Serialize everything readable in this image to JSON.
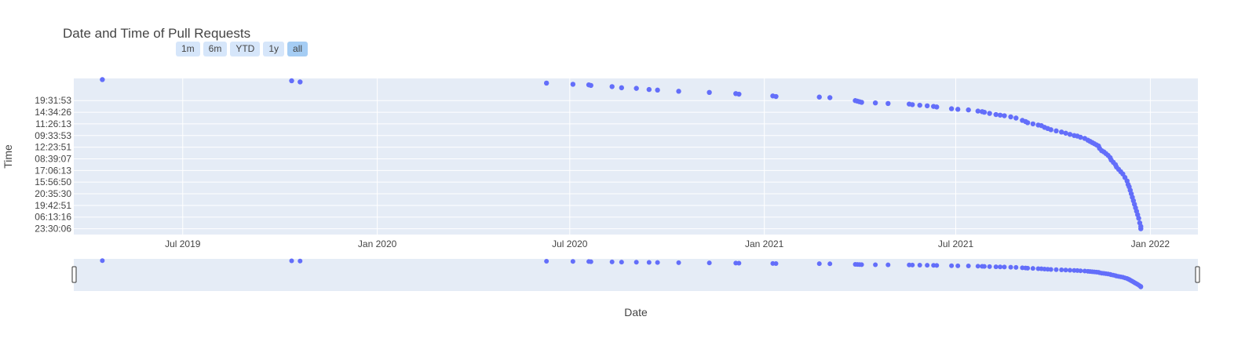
{
  "chart_data": {
    "type": "scatter",
    "title": "Date and Time of Pull Requests",
    "xlabel": "Date",
    "ylabel": "Time",
    "xlim": [
      "2019-03-20",
      "2022-02-15"
    ],
    "x_ticks": [
      {
        "date": "2019-07-01",
        "label": "Jul 2019"
      },
      {
        "date": "2020-01-01",
        "label": "Jan 2020"
      },
      {
        "date": "2020-07-01",
        "label": "Jul 2020"
      },
      {
        "date": "2021-01-01",
        "label": "Jan 2021"
      },
      {
        "date": "2021-07-01",
        "label": "Jul 2021"
      },
      {
        "date": "2022-01-01",
        "label": "Jan 2022"
      }
    ],
    "y_categories": [
      "23:30:06",
      "06:13:16",
      "19:42:51",
      "20:35:30",
      "15:56:50",
      "17:06:13",
      "08:39:07",
      "12:23:51",
      "09:33:53",
      "11:26:13",
      "14:34:26",
      "19:31:53"
    ],
    "y_axis_type": "category",
    "color": "#636efa",
    "range_selector": [
      "1m",
      "6m",
      "YTD",
      "1y",
      "all"
    ],
    "range_selector_active": "all",
    "range_slider": true,
    "series": [
      {
        "points": [
          [
            "2019-04-16",
            12.8
          ],
          [
            "2019-10-12",
            12.7
          ],
          [
            "2019-10-20",
            12.6
          ],
          [
            "2020-06-09",
            12.5
          ],
          [
            "2020-07-04",
            12.4
          ],
          [
            "2020-07-19",
            12.35
          ],
          [
            "2020-07-21",
            12.3
          ],
          [
            "2020-08-10",
            12.2
          ],
          [
            "2020-08-19",
            12.1
          ],
          [
            "2020-09-02",
            12.05
          ],
          [
            "2020-09-14",
            11.95
          ],
          [
            "2020-09-22",
            11.9
          ],
          [
            "2020-10-12",
            11.8
          ],
          [
            "2020-11-10",
            11.7
          ],
          [
            "2020-12-05",
            11.6
          ],
          [
            "2020-12-08",
            11.55
          ],
          [
            "2021-01-09",
            11.4
          ],
          [
            "2021-01-12",
            11.35
          ],
          [
            "2021-02-22",
            11.3
          ],
          [
            "2021-03-04",
            11.25
          ],
          [
            "2021-03-28",
            11.0
          ],
          [
            "2021-03-30",
            10.95
          ],
          [
            "2021-04-01",
            10.9
          ],
          [
            "2021-04-03",
            10.85
          ],
          [
            "2021-04-16",
            10.8
          ],
          [
            "2021-04-28",
            10.75
          ],
          [
            "2021-05-18",
            10.7
          ],
          [
            "2021-05-21",
            10.65
          ],
          [
            "2021-05-28",
            10.6
          ],
          [
            "2021-06-04",
            10.55
          ],
          [
            "2021-06-10",
            10.5
          ],
          [
            "2021-06-13",
            10.45
          ],
          [
            "2021-06-27",
            10.3
          ],
          [
            "2021-07-03",
            10.25
          ],
          [
            "2021-07-13",
            10.2
          ],
          [
            "2021-07-22",
            10.1
          ],
          [
            "2021-07-26",
            10.05
          ],
          [
            "2021-07-28",
            10.0
          ],
          [
            "2021-08-02",
            9.9
          ],
          [
            "2021-08-08",
            9.8
          ],
          [
            "2021-08-12",
            9.75
          ],
          [
            "2021-08-16",
            9.7
          ],
          [
            "2021-08-22",
            9.6
          ],
          [
            "2021-08-27",
            9.5
          ],
          [
            "2021-09-02",
            9.3
          ],
          [
            "2021-09-05",
            9.2
          ],
          [
            "2021-09-07",
            9.1
          ],
          [
            "2021-09-12",
            9.0
          ],
          [
            "2021-09-17",
            8.9
          ],
          [
            "2021-09-20",
            8.85
          ],
          [
            "2021-09-23",
            8.7
          ],
          [
            "2021-09-26",
            8.6
          ],
          [
            "2021-09-29",
            8.5
          ],
          [
            "2021-10-04",
            8.4
          ],
          [
            "2021-10-09",
            8.3
          ],
          [
            "2021-10-13",
            8.2
          ],
          [
            "2021-10-17",
            8.1
          ],
          [
            "2021-10-21",
            8.0
          ],
          [
            "2021-10-24",
            7.95
          ],
          [
            "2021-10-27",
            7.85
          ],
          [
            "2021-10-31",
            7.75
          ],
          [
            "2021-11-03",
            7.6
          ],
          [
            "2021-11-05",
            7.5
          ],
          [
            "2021-11-07",
            7.4
          ],
          [
            "2021-11-09",
            7.3
          ],
          [
            "2021-11-11",
            7.2
          ],
          [
            "2021-11-13",
            7.1
          ],
          [
            "2021-11-14",
            6.9
          ],
          [
            "2021-11-16",
            6.7
          ],
          [
            "2021-11-18",
            6.6
          ],
          [
            "2021-11-20",
            6.45
          ],
          [
            "2021-11-22",
            6.3
          ],
          [
            "2021-11-24",
            6.1
          ],
          [
            "2021-11-25",
            5.9
          ],
          [
            "2021-11-27",
            5.7
          ],
          [
            "2021-11-29",
            5.5
          ],
          [
            "2021-11-30",
            5.3
          ],
          [
            "2021-12-02",
            5.1
          ],
          [
            "2021-12-04",
            4.9
          ],
          [
            "2021-12-06",
            4.7
          ],
          [
            "2021-12-08",
            4.4
          ],
          [
            "2021-12-10",
            4.1
          ],
          [
            "2021-12-11",
            3.8
          ],
          [
            "2021-12-12",
            3.6
          ],
          [
            "2021-12-13",
            3.3
          ],
          [
            "2021-12-14",
            3.0
          ],
          [
            "2021-12-15",
            2.7
          ],
          [
            "2021-12-16",
            2.4
          ],
          [
            "2021-12-17",
            2.1
          ],
          [
            "2021-12-18",
            1.8
          ],
          [
            "2021-12-19",
            1.5
          ],
          [
            "2021-12-20",
            1.2
          ],
          [
            "2021-12-21",
            0.9
          ],
          [
            "2021-12-22",
            0.5
          ],
          [
            "2021-12-23",
            0.2
          ],
          [
            "2021-12-23",
            0.0
          ]
        ]
      }
    ]
  }
}
